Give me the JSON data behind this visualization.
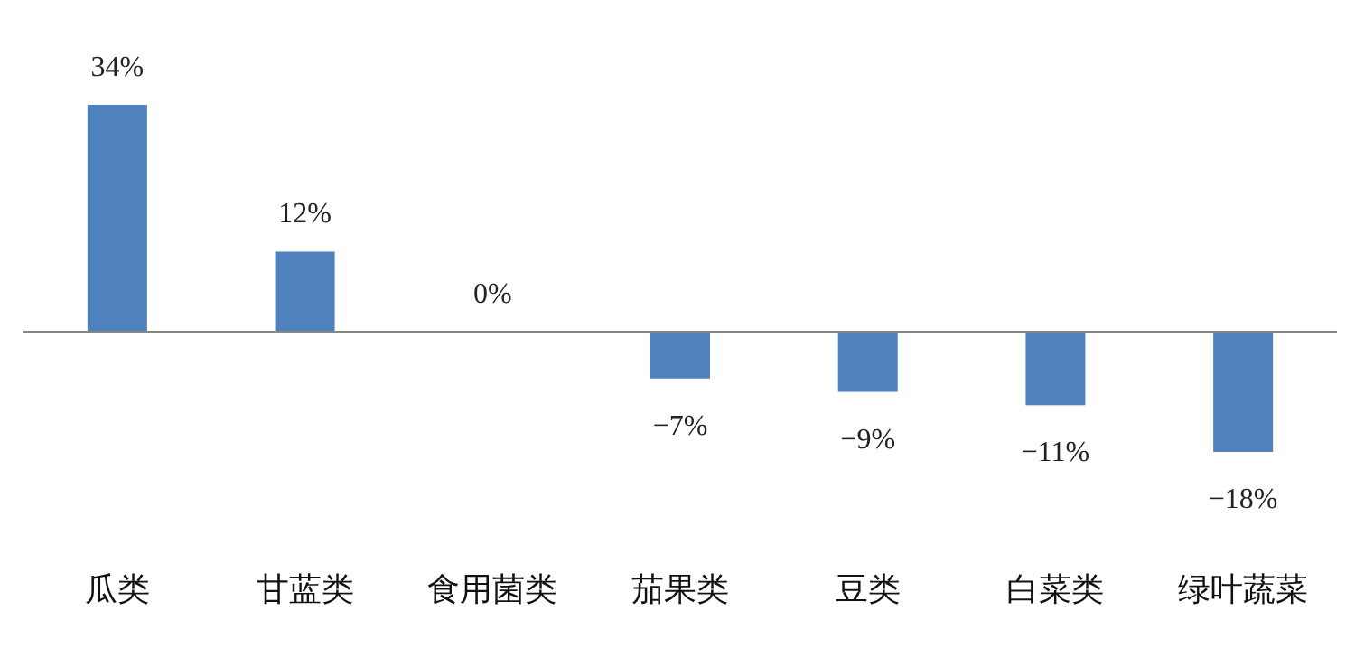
{
  "chart_data": {
    "type": "bar",
    "categories": [
      "瓜类",
      "甘蓝类",
      "食用菌类",
      "茄果类",
      "豆类",
      "白菜类",
      "绿叶蔬菜"
    ],
    "values": [
      34,
      12,
      0,
      -7,
      -9,
      -11,
      -18
    ],
    "value_labels": [
      "34%",
      "12%",
      "0%",
      "−7%",
      "−9%",
      "−11%",
      "−18%"
    ],
    "color": "#4f81bd"
  }
}
